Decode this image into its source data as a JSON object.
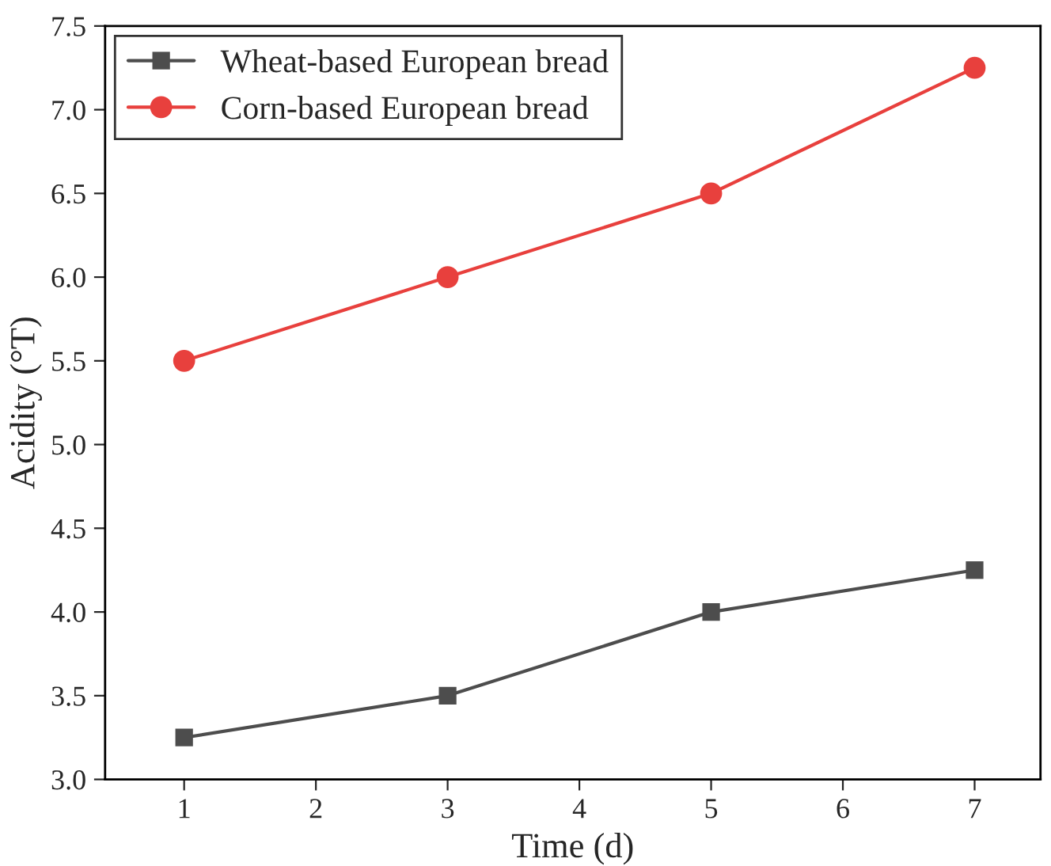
{
  "chart_data": {
    "type": "line",
    "xlabel": "Time (d)",
    "ylabel": "Acidity (°T)",
    "x": [
      1,
      3,
      5,
      7
    ],
    "series": [
      {
        "name": "Wheat-based European bread",
        "color": "#4d4d4d",
        "values": [
          3.25,
          3.5,
          4.0,
          4.25
        ],
        "marker": "square"
      },
      {
        "name": "Corn-based European bread",
        "color": "#e8403d",
        "values": [
          5.5,
          6.0,
          6.5,
          7.25
        ],
        "marker": "circle"
      }
    ],
    "xlim": [
      0.4,
      7.5
    ],
    "xticks": [
      1,
      2,
      3,
      4,
      5,
      6,
      7
    ],
    "ylim": [
      3.0,
      7.5
    ],
    "yticks": [
      {
        "value": 3.0,
        "label": "3.0"
      },
      {
        "value": 3.5,
        "label": "3.5"
      },
      {
        "value": 4.0,
        "label": "4.0"
      },
      {
        "value": 4.5,
        "label": "4.5"
      },
      {
        "value": 5.0,
        "label": "5.0"
      },
      {
        "value": 5.5,
        "label": "5.5"
      },
      {
        "value": 6.0,
        "label": "6.0"
      },
      {
        "value": 6.5,
        "label": "6.5"
      },
      {
        "value": 7.0,
        "label": "7.0"
      },
      {
        "value": 7.5,
        "label": "7.5"
      }
    ],
    "grid": false,
    "legend": "top left",
    "line_style": "solid"
  }
}
